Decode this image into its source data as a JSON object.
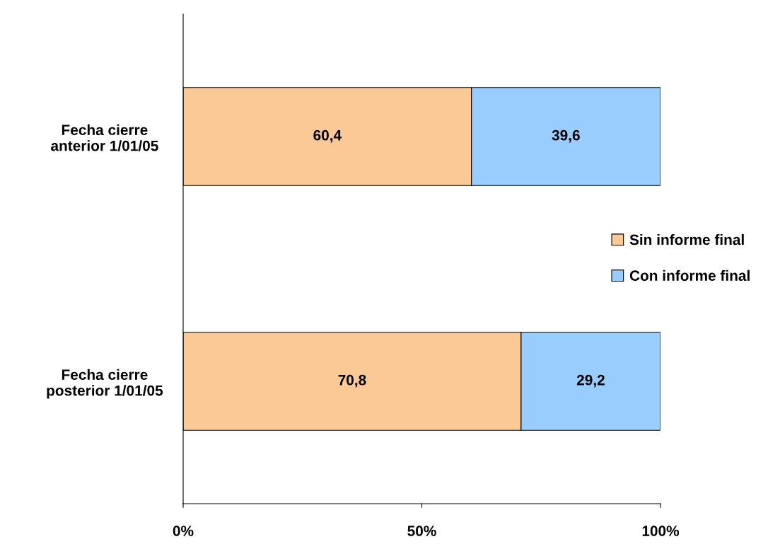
{
  "chart_data": {
    "type": "bar",
    "orientation": "horizontal",
    "stacked": true,
    "categories": [
      "Fecha cierre\nanterior 1/01/05",
      "Fecha cierre\nposterior 1/01/05"
    ],
    "series": [
      {
        "name": "Sin informe final",
        "color": "#fbc996",
        "values": [
          60.4,
          70.8
        ],
        "value_labels": [
          "60,4",
          "70,8"
        ]
      },
      {
        "name": "Con informe final",
        "color": "#99ccff",
        "values": [
          39.6,
          29.2
        ],
        "value_labels": [
          "39,6",
          "29,2"
        ]
      }
    ],
    "xlim": [
      0,
      100
    ],
    "xticks": [
      {
        "value": 0,
        "label": "0%"
      },
      {
        "value": 50,
        "label": "50%"
      },
      {
        "value": 100,
        "label": "100%"
      }
    ],
    "grid": false,
    "legend": "right"
  }
}
